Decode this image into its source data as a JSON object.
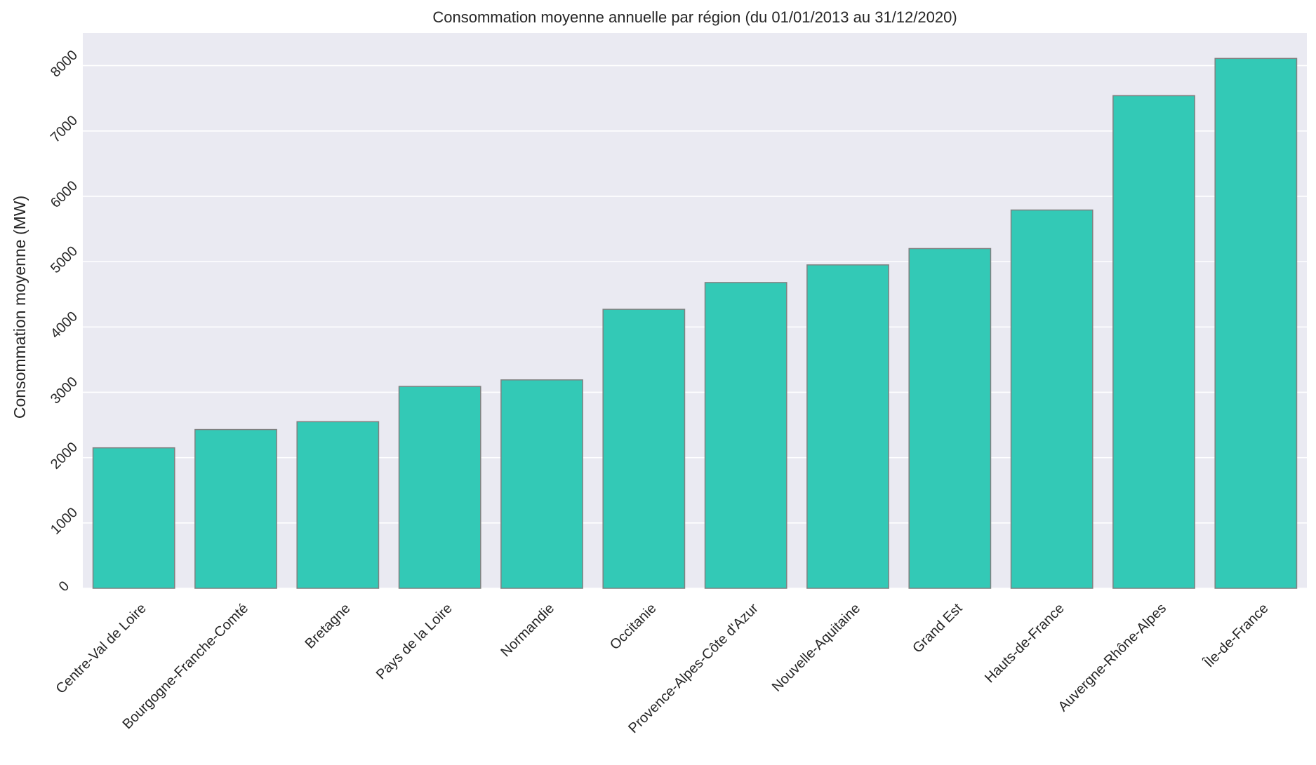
{
  "chart_data": {
    "type": "bar",
    "title": "Consommation moyenne annuelle par région (du 01/01/2013 au 31/12/2020)",
    "xlabel": "",
    "ylabel": "Consommation moyenne (MW)",
    "categories": [
      "Centre-Val de Loire",
      "Bourgogne-Franche-Comté",
      "Bretagne",
      "Pays de la Loire",
      "Normandie",
      "Occitanie",
      "Provence-Alpes-Côte d'Azur",
      "Nouvelle-Aquitaine",
      "Grand Est",
      "Hauts-de-France",
      "Auvergne-Rhône-Alpes",
      "Île-de-France"
    ],
    "values": [
      2150,
      2430,
      2550,
      3090,
      3190,
      4270,
      4680,
      4950,
      5200,
      5790,
      7540,
      8110
    ],
    "ylim": [
      0,
      8500
    ],
    "yticks": [
      0,
      1000,
      2000,
      3000,
      4000,
      5000,
      6000,
      7000,
      8000
    ],
    "grid": true,
    "colors": {
      "bar": "#33c9b6",
      "bar_edge": "#808080",
      "plot_background": "#eaeaf2",
      "grid": "#ffffff",
      "text": "#262626"
    }
  }
}
